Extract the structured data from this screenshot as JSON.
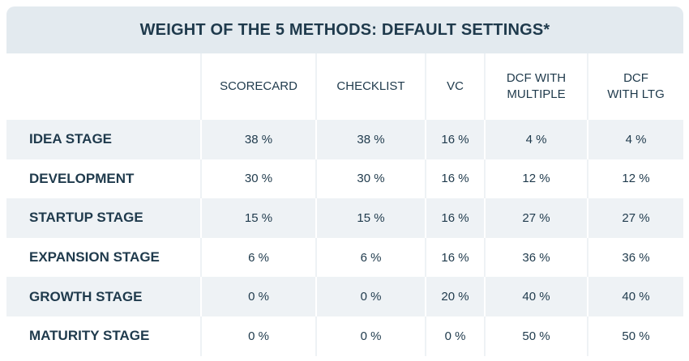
{
  "table": {
    "title": "WEIGHT OF THE 5 METHODS: DEFAULT SETTINGS*",
    "columns": [
      [
        "SCORECARD"
      ],
      [
        "CHECKLIST"
      ],
      [
        "VC"
      ],
      [
        "DCF WITH",
        "MULTIPLE"
      ],
      [
        "DCF",
        "WITH LTG"
      ]
    ],
    "rows": [
      [
        "IDEA STAGE",
        "38 %",
        "38 %",
        "16 %",
        "4 %",
        "4 %"
      ],
      [
        "DEVELOPMENT",
        "30 %",
        "30 %",
        "16 %",
        "12 %",
        "12 %"
      ],
      [
        "STARTUP STAGE",
        "15 %",
        "15 %",
        "16 %",
        "27 %",
        "27 %"
      ],
      [
        "EXPANSION STAGE",
        "6 %",
        "6 %",
        "16 %",
        "36 %",
        "36 %"
      ],
      [
        "GROWTH STAGE",
        "0 %",
        "0 %",
        "20 %",
        "40 %",
        "40 %"
      ],
      [
        "MATURITY STAGE",
        "0 %",
        "0 %",
        "0 %",
        "50 %",
        "50 %"
      ]
    ]
  }
}
